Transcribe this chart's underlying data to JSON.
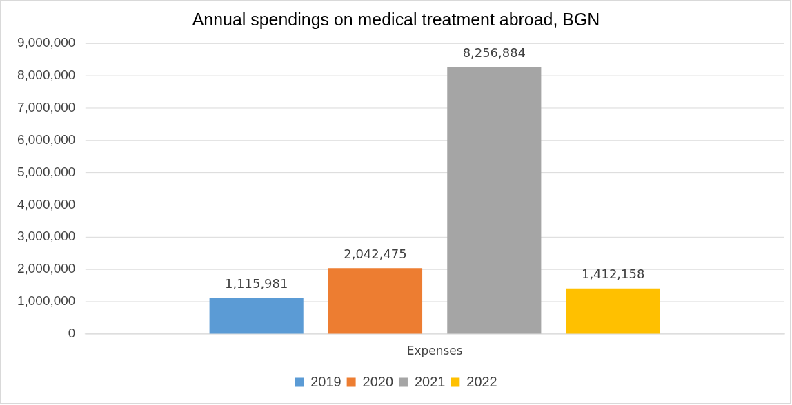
{
  "chart_data": {
    "type": "bar",
    "title": "Annual spendings on medical treatment abroad, BGN",
    "categories": [
      "Expenses"
    ],
    "series": [
      {
        "name": "2019",
        "color": "#5b9bd5",
        "values": [
          1115981
        ],
        "value_labels": [
          "1,115,981"
        ]
      },
      {
        "name": "2020",
        "color": "#ed7d31",
        "values": [
          2042475
        ],
        "value_labels": [
          "2,042,475"
        ]
      },
      {
        "name": "2021",
        "color": "#a5a5a5",
        "values": [
          8256884
        ],
        "value_labels": [
          "8,256,884"
        ]
      },
      {
        "name": "2022",
        "color": "#ffc000",
        "values": [
          1412158
        ],
        "value_labels": [
          "1,412,158"
        ]
      }
    ],
    "ylim": [
      0,
      9000000
    ],
    "yticks": [
      0,
      {
        "value": 1000000,
        "label": "1,000,000"
      },
      {
        "value": 2000000,
        "label": "2,000,000"
      },
      {
        "value": 3000000,
        "label": "3,000,000"
      },
      {
        "value": 4000000,
        "label": "4,000,000"
      },
      {
        "value": 5000000,
        "label": "5,000,000"
      },
      {
        "value": 6000000,
        "label": "6,000,000"
      },
      {
        "value": 7000000,
        "label": "7,000,000"
      },
      {
        "value": 8000000,
        "label": "8,000,000"
      },
      {
        "value": 9000000,
        "label": "9,000,000"
      }
    ],
    "grid": "y",
    "legend": "bottom"
  }
}
